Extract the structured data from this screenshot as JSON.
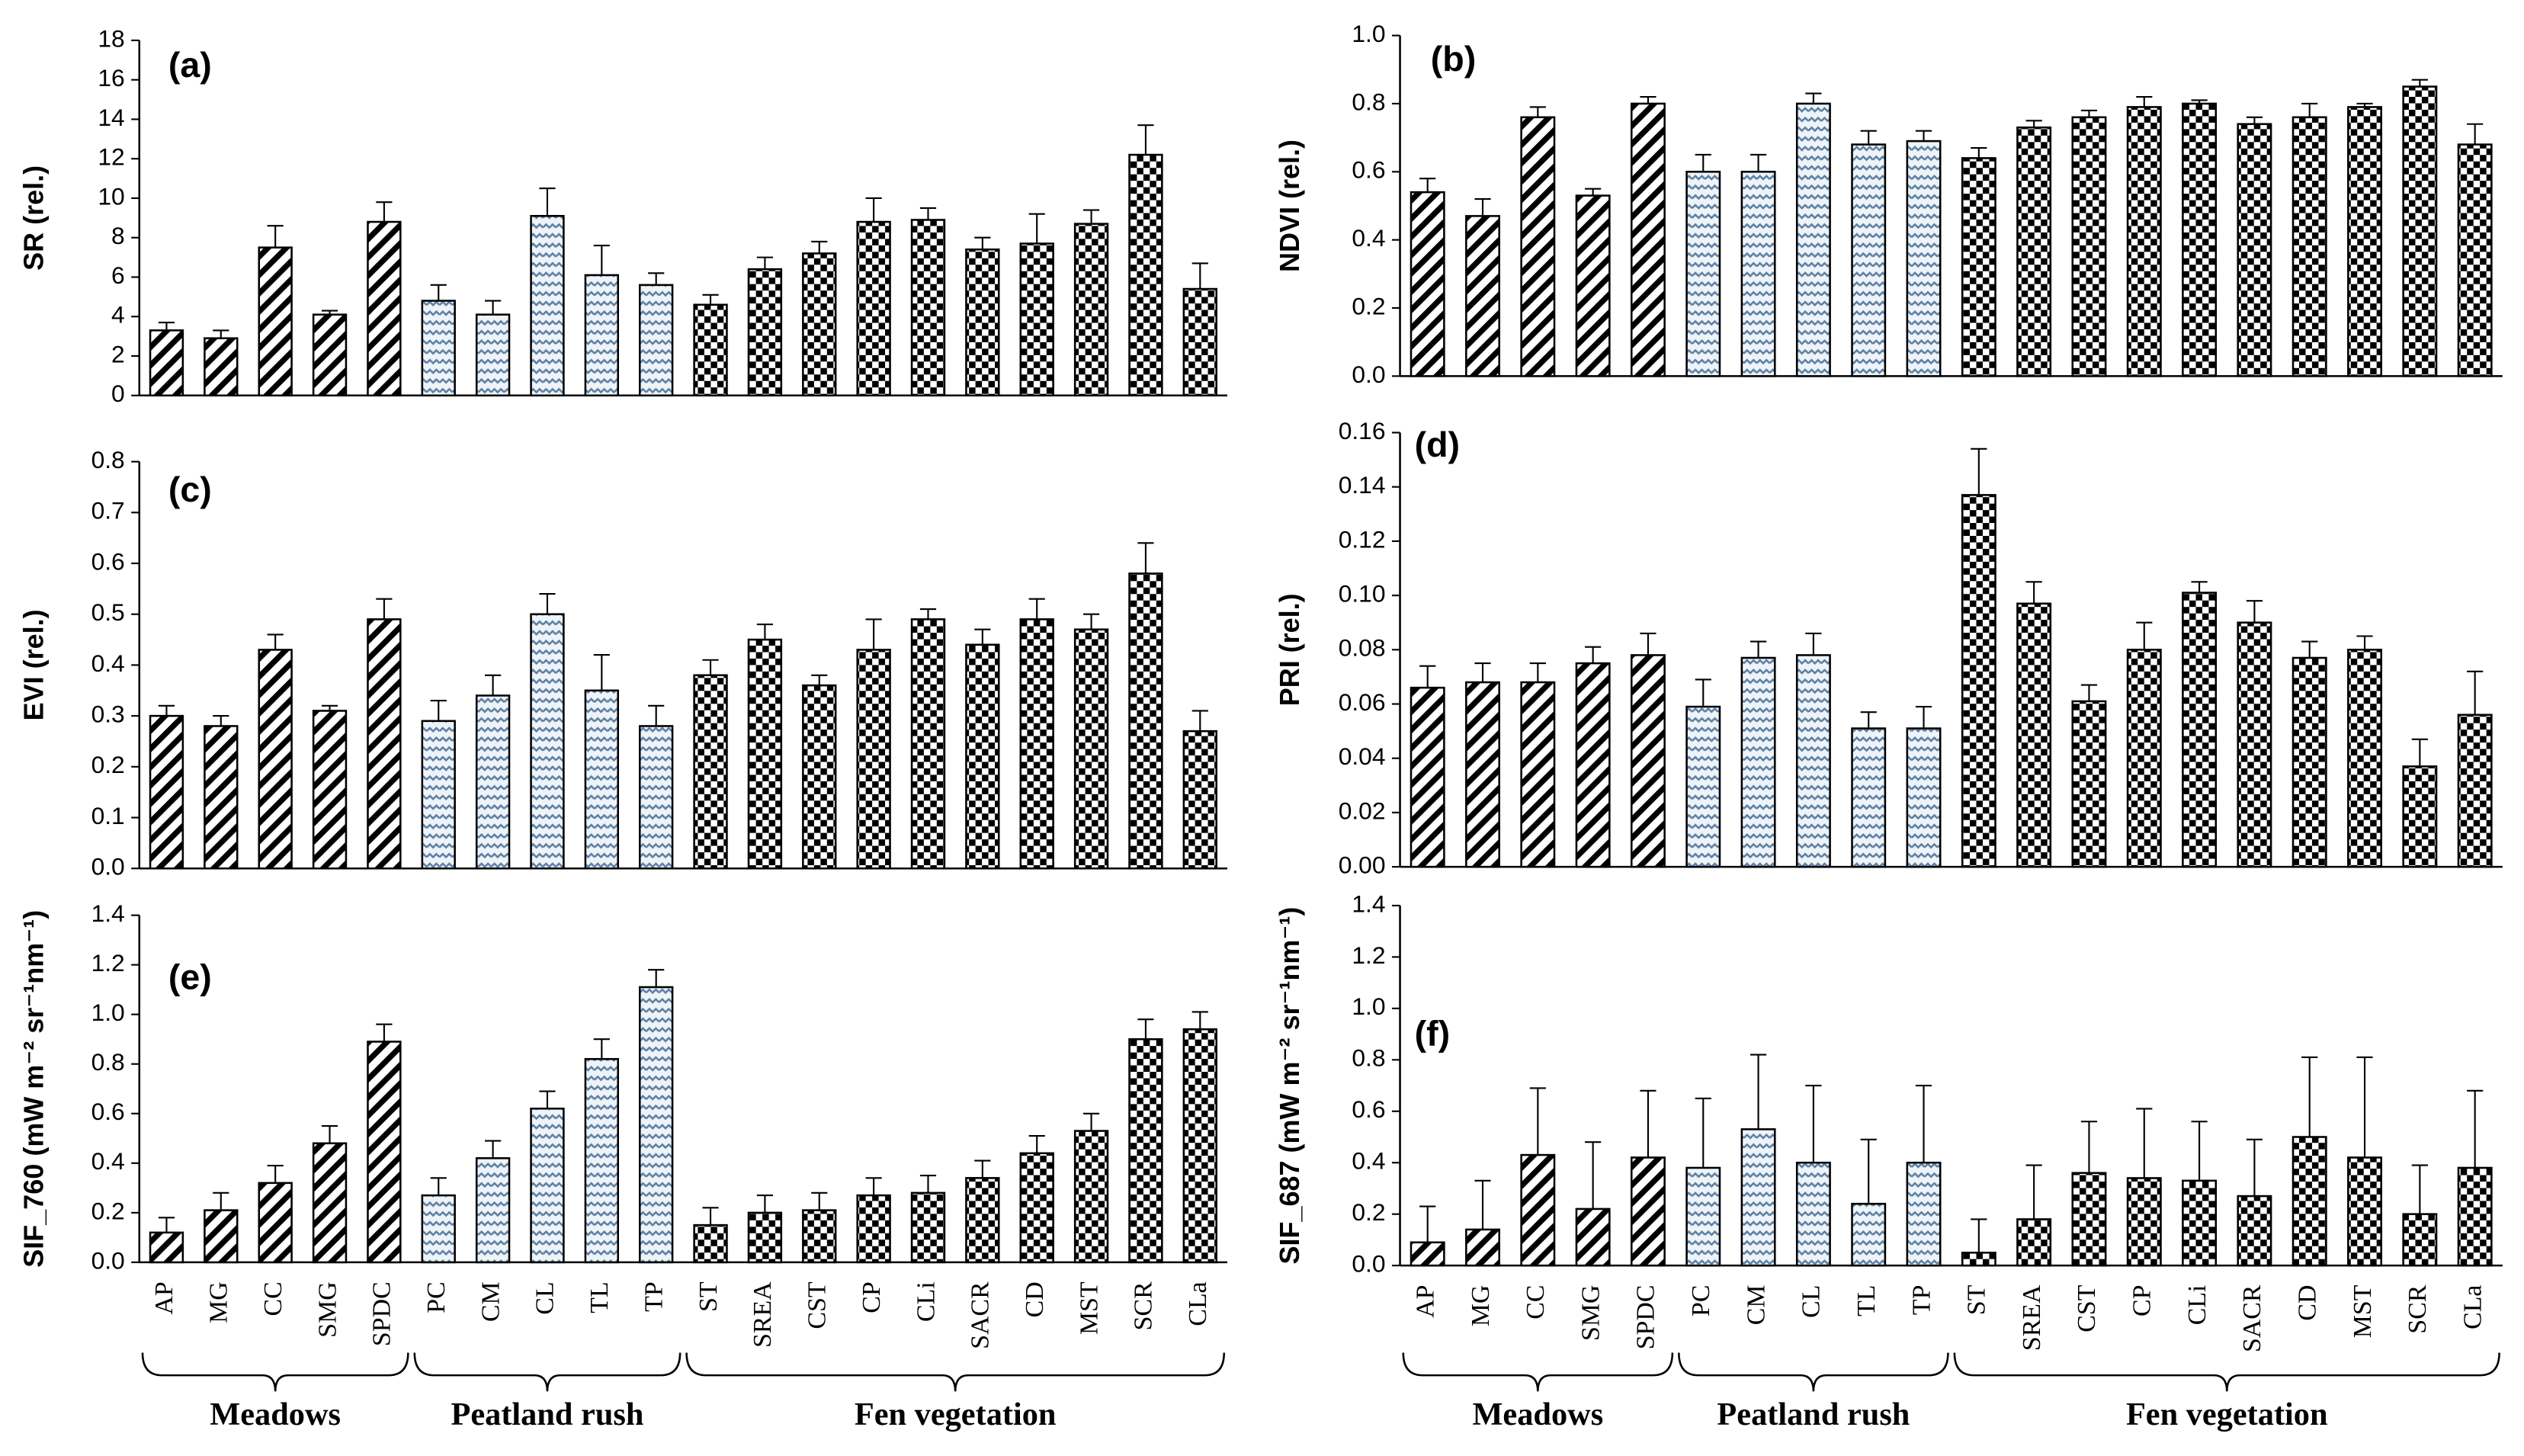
{
  "chart_data": [
    {
      "type": "bar",
      "label": "(a)",
      "ylabel": "SR (rel.)",
      "ylim": [
        0,
        18
      ],
      "yticks": [
        0,
        2,
        4,
        6,
        8,
        10,
        12,
        14,
        16,
        18
      ],
      "values": [
        3.3,
        2.9,
        7.5,
        4.1,
        8.8,
        4.8,
        4.1,
        9.1,
        6.1,
        5.6,
        4.6,
        6.4,
        7.2,
        8.8,
        8.9,
        7.4,
        7.7,
        8.7,
        12.2,
        5.4
      ],
      "errors": [
        0.4,
        0.4,
        1.1,
        0.2,
        1.0,
        0.8,
        0.7,
        1.4,
        1.5,
        0.6,
        0.5,
        0.6,
        0.6,
        1.2,
        0.6,
        0.6,
        1.5,
        0.7,
        1.5,
        1.3
      ]
    },
    {
      "type": "bar",
      "label": "(b)",
      "ylabel": "NDVI (rel.)",
      "ylim": [
        0,
        1
      ],
      "yticks": [
        {
          "value": 0,
          "label": "0.0"
        },
        0.2,
        0.4,
        0.6,
        0.8,
        {
          "value": 1,
          "label": "1.0"
        }
      ],
      "values": [
        0.54,
        0.47,
        0.76,
        0.53,
        0.8,
        0.6,
        0.6,
        0.8,
        0.68,
        0.69,
        0.64,
        0.73,
        0.76,
        0.79,
        0.8,
        0.74,
        0.76,
        0.79,
        0.85,
        0.68
      ],
      "errors": [
        0.04,
        0.05,
        0.03,
        0.02,
        0.02,
        0.05,
        0.05,
        0.03,
        0.04,
        0.03,
        0.03,
        0.02,
        0.02,
        0.03,
        0.01,
        0.02,
        0.04,
        0.01,
        0.02,
        0.06
      ]
    },
    {
      "type": "bar",
      "label": "(c)",
      "ylabel": "EVI (rel.)",
      "ylim": [
        0,
        0.8
      ],
      "yticks": [
        {
          "value": 0,
          "label": "0.0"
        },
        0.1,
        0.2,
        0.3,
        0.4,
        0.5,
        0.6,
        0.7,
        0.8
      ],
      "values": [
        0.3,
        0.28,
        0.43,
        0.31,
        0.49,
        0.29,
        0.34,
        0.5,
        0.35,
        0.28,
        0.38,
        0.45,
        0.36,
        0.43,
        0.49,
        0.44,
        0.49,
        0.47,
        0.58,
        0.27
      ],
      "errors": [
        0.02,
        0.02,
        0.03,
        0.01,
        0.04,
        0.04,
        0.04,
        0.04,
        0.07,
        0.04,
        0.03,
        0.03,
        0.02,
        0.06,
        0.02,
        0.03,
        0.04,
        0.03,
        0.06,
        0.04
      ]
    },
    {
      "type": "bar",
      "label": "(d)",
      "ylabel": "PRI (rel.)",
      "ylim": [
        0,
        0.16
      ],
      "yticks": [
        {
          "value": 0,
          "label": "0.00"
        },
        0.02,
        0.04,
        0.06,
        0.08,
        {
          "value": 0.1,
          "label": "0.10"
        },
        0.12,
        0.14,
        0.16
      ],
      "values": [
        0.066,
        0.068,
        0.068,
        0.075,
        0.078,
        0.059,
        0.077,
        0.078,
        0.051,
        0.051,
        0.137,
        0.097,
        0.061,
        0.08,
        0.101,
        0.09,
        0.077,
        0.08,
        0.037,
        0.056
      ],
      "errors": [
        0.008,
        0.007,
        0.007,
        0.006,
        0.008,
        0.01,
        0.006,
        0.008,
        0.006,
        0.008,
        0.017,
        0.008,
        0.006,
        0.01,
        0.004,
        0.008,
        0.006,
        0.005,
        0.01,
        0.016
      ]
    },
    {
      "type": "bar",
      "label": "(e)",
      "ylabel": "SIF_760 (mW m⁻² sr⁻¹nm⁻¹)",
      "ylim": [
        0,
        1.4
      ],
      "yticks": [
        {
          "value": 0,
          "label": "0.0"
        },
        0.2,
        0.4,
        0.6,
        0.8,
        {
          "value": 1,
          "label": "1.0"
        },
        1.2,
        1.4
      ],
      "values": [
        0.12,
        0.21,
        0.32,
        0.48,
        0.89,
        0.27,
        0.42,
        0.62,
        0.82,
        1.11,
        0.15,
        0.2,
        0.21,
        0.27,
        0.28,
        0.34,
        0.44,
        0.53,
        0.9,
        0.94
      ],
      "errors": [
        0.06,
        0.07,
        0.07,
        0.07,
        0.07,
        0.07,
        0.07,
        0.07,
        0.08,
        0.07,
        0.07,
        0.07,
        0.07,
        0.07,
        0.07,
        0.07,
        0.07,
        0.07,
        0.08,
        0.07
      ],
      "groups": [
        {
          "name": "Meadows",
          "categories": [
            "AP",
            "MG",
            "CC",
            "SMG",
            "SPDC"
          ]
        },
        {
          "name": "Peatland rush",
          "categories": [
            "PC",
            "CM",
            "CL",
            "TL",
            "TP"
          ]
        },
        {
          "name": "Fen vegetation",
          "categories": [
            "ST",
            "SREA",
            "CST",
            "CP",
            "CLi",
            "SACR",
            "CD",
            "MST",
            "SCR",
            "CLa"
          ]
        }
      ]
    },
    {
      "type": "bar",
      "label": "(f)",
      "ylabel": "SIF_687 (mW m⁻² sr⁻¹nm⁻¹)",
      "ylim": [
        0,
        1.4
      ],
      "yticks": [
        {
          "value": 0,
          "label": "0.0"
        },
        0.2,
        0.4,
        0.6,
        0.8,
        {
          "value": 1,
          "label": "1.0"
        },
        1.2,
        1.4
      ],
      "values": [
        0.09,
        0.14,
        0.43,
        0.22,
        0.42,
        0.38,
        0.53,
        0.4,
        0.24,
        0.4,
        0.05,
        0.18,
        0.36,
        0.34,
        0.33,
        0.27,
        0.5,
        0.42,
        0.2,
        0.38
      ],
      "errors": [
        0.14,
        0.19,
        0.26,
        0.26,
        0.26,
        0.27,
        0.29,
        0.3,
        0.25,
        0.3,
        0.13,
        0.21,
        0.2,
        0.27,
        0.23,
        0.22,
        0.31,
        0.39,
        0.19,
        0.3
      ],
      "groups": [
        {
          "name": "Meadows",
          "categories": [
            "AP",
            "MG",
            "CC",
            "SMG",
            "SPDC"
          ]
        },
        {
          "name": "Peatland rush",
          "categories": [
            "PC",
            "CM",
            "CL",
            "TL",
            "TP"
          ]
        },
        {
          "name": "Fen vegetation",
          "categories": [
            "ST",
            "SREA",
            "CST",
            "CP",
            "CLi",
            "SACR",
            "CD",
            "MST",
            "SCR",
            "CLa"
          ]
        }
      ]
    }
  ]
}
